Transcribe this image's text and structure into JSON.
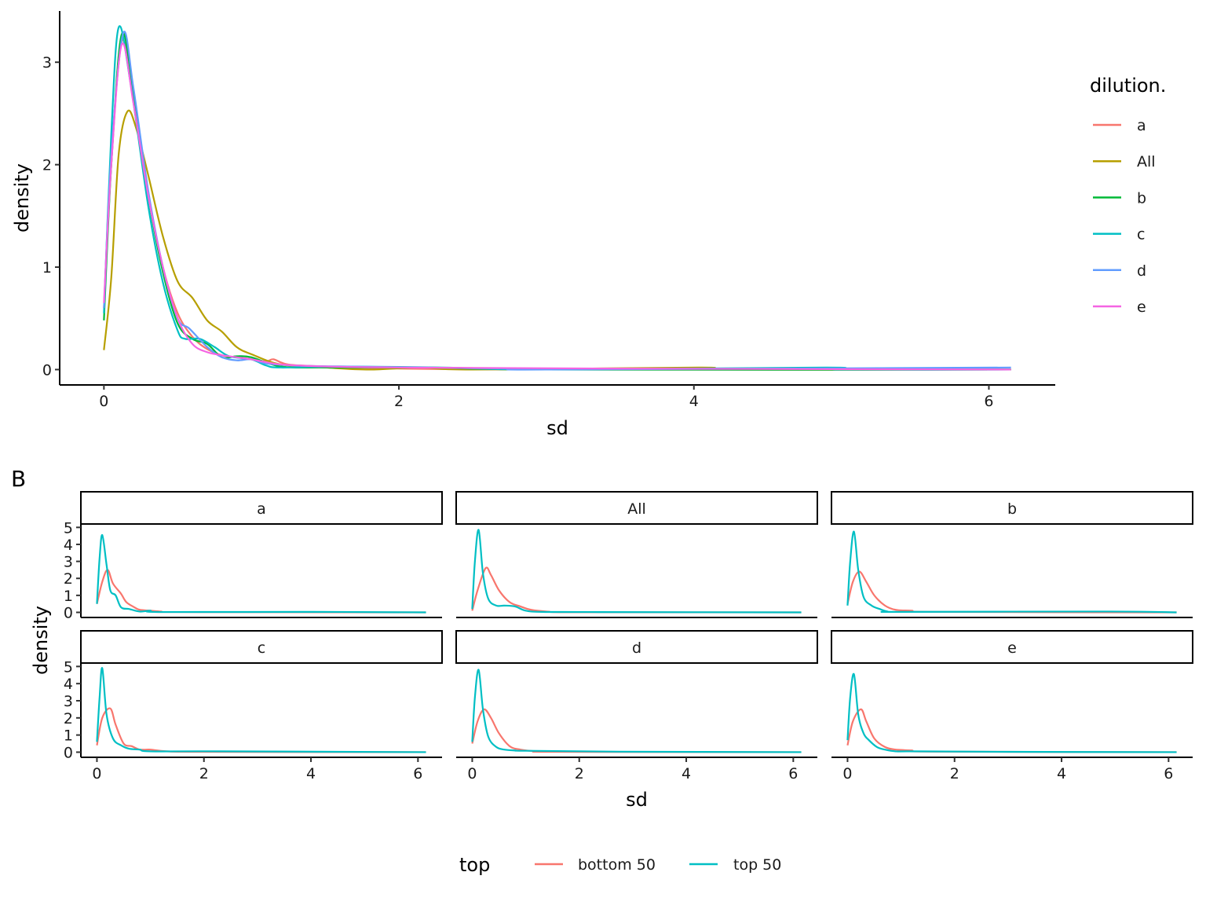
{
  "chart_data": [
    {
      "type": "line",
      "subtype": "density",
      "panel_tag": "",
      "xlabel": "sd",
      "ylabel": "density",
      "xlim": [
        -0.3,
        6.45
      ],
      "ylim": [
        -0.15,
        3.5
      ],
      "xticks": [
        0,
        2,
        4,
        6
      ],
      "yticks": [
        0,
        1,
        2,
        3
      ],
      "grid": false,
      "legend": {
        "title": "dilution.",
        "placement": "right"
      },
      "series": [
        {
          "name": "a",
          "color": "#F8766D",
          "points": [
            [
              0,
              0.6
            ],
            [
              0.05,
              2.0
            ],
            [
              0.12,
              3.2
            ],
            [
              0.2,
              2.65
            ],
            [
              0.3,
              1.7
            ],
            [
              0.4,
              1.0
            ],
            [
              0.5,
              0.55
            ],
            [
              0.6,
              0.32
            ],
            [
              0.7,
              0.2
            ],
            [
              0.8,
              0.14
            ],
            [
              0.9,
              0.12
            ],
            [
              1.0,
              0.1
            ],
            [
              1.1,
              0.08
            ],
            [
              1.15,
              0.1
            ],
            [
              1.25,
              0.05
            ],
            [
              1.5,
              0.03
            ],
            [
              2.0,
              0.01
            ],
            [
              3.0,
              0.0
            ],
            [
              6.15,
              0.0
            ]
          ]
        },
        {
          "name": "All",
          "color": "#B79F00",
          "points": [
            [
              0,
              0.19
            ],
            [
              0.05,
              0.9
            ],
            [
              0.1,
              2.1
            ],
            [
              0.16,
              2.52
            ],
            [
              0.22,
              2.35
            ],
            [
              0.3,
              1.9
            ],
            [
              0.4,
              1.3
            ],
            [
              0.5,
              0.86
            ],
            [
              0.6,
              0.7
            ],
            [
              0.7,
              0.48
            ],
            [
              0.8,
              0.37
            ],
            [
              0.9,
              0.22
            ],
            [
              1.0,
              0.15
            ],
            [
              1.2,
              0.05
            ],
            [
              1.5,
              0.02
            ],
            [
              1.8,
              0.0
            ],
            [
              2.15,
              0.02
            ],
            [
              2.5,
              0.0
            ],
            [
              4.05,
              0.02
            ],
            [
              4.2,
              0.0
            ],
            [
              6.15,
              0.0
            ]
          ]
        },
        {
          "name": "b",
          "color": "#00BA38",
          "points": [
            [
              0,
              0.48
            ],
            [
              0.05,
              2.0
            ],
            [
              0.12,
              3.27
            ],
            [
              0.2,
              2.7
            ],
            [
              0.3,
              1.7
            ],
            [
              0.4,
              0.95
            ],
            [
              0.5,
              0.45
            ],
            [
              0.6,
              0.3
            ],
            [
              0.7,
              0.25
            ],
            [
              0.8,
              0.12
            ],
            [
              0.9,
              0.13
            ],
            [
              1.0,
              0.12
            ],
            [
              1.2,
              0.03
            ],
            [
              1.5,
              0.02
            ],
            [
              2.2,
              0.02
            ],
            [
              3.0,
              0.0
            ],
            [
              6.15,
              0.0
            ]
          ]
        },
        {
          "name": "c",
          "color": "#00BFC4",
          "points": [
            [
              0,
              0.55
            ],
            [
              0.05,
              2.3
            ],
            [
              0.1,
              3.34
            ],
            [
              0.18,
              2.8
            ],
            [
              0.3,
              1.6
            ],
            [
              0.4,
              0.85
            ],
            [
              0.5,
              0.38
            ],
            [
              0.55,
              0.3
            ],
            [
              0.65,
              0.3
            ],
            [
              0.75,
              0.22
            ],
            [
              0.85,
              0.13
            ],
            [
              1.0,
              0.1
            ],
            [
              1.1,
              0.04
            ],
            [
              1.2,
              0.02
            ],
            [
              1.6,
              0.03
            ],
            [
              2.3,
              0.02
            ],
            [
              3.0,
              0.0
            ],
            [
              4.9,
              0.02
            ],
            [
              5.0,
              0.0
            ],
            [
              6.15,
              0.0
            ]
          ]
        },
        {
          "name": "d",
          "color": "#619CFF",
          "points": [
            [
              0,
              0.6
            ],
            [
              0.05,
              2.1
            ],
            [
              0.13,
              3.28
            ],
            [
              0.2,
              2.75
            ],
            [
              0.3,
              1.75
            ],
            [
              0.4,
              1.0
            ],
            [
              0.5,
              0.5
            ],
            [
              0.58,
              0.4
            ],
            [
              0.7,
              0.22
            ],
            [
              0.8,
              0.12
            ],
            [
              0.9,
              0.09
            ],
            [
              1.0,
              0.1
            ],
            [
              1.1,
              0.06
            ],
            [
              1.3,
              0.04
            ],
            [
              1.6,
              0.03
            ],
            [
              2.75,
              0.01
            ],
            [
              3.0,
              0.0
            ],
            [
              6.15,
              0.02
            ]
          ]
        },
        {
          "name": "e",
          "color": "#F564E3",
          "points": [
            [
              0,
              0.65
            ],
            [
              0.05,
              2.0
            ],
            [
              0.12,
              3.17
            ],
            [
              0.2,
              2.6
            ],
            [
              0.3,
              1.7
            ],
            [
              0.4,
              1.0
            ],
            [
              0.5,
              0.5
            ],
            [
              0.6,
              0.25
            ],
            [
              0.7,
              0.17
            ],
            [
              0.8,
              0.14
            ],
            [
              0.9,
              0.12
            ],
            [
              1.0,
              0.1
            ],
            [
              1.2,
              0.05
            ],
            [
              1.5,
              0.03
            ],
            [
              2.0,
              0.02
            ],
            [
              3.4,
              0.01
            ],
            [
              6.15,
              0.0
            ]
          ]
        }
      ]
    },
    {
      "type": "line",
      "subtype": "density-facets",
      "panel_tag": "B",
      "xlabel": "sd",
      "ylabel": "density",
      "xlim": [
        -0.3,
        6.45
      ],
      "ylim": [
        -0.3,
        5.2
      ],
      "xticks": [
        0,
        2,
        4,
        6
      ],
      "yticks": [
        0,
        1,
        2,
        3,
        4,
        5
      ],
      "grid": false,
      "legend": {
        "title": "top",
        "placement": "bottom",
        "entries": [
          {
            "name": "bottom 50",
            "color": "#F8766D"
          },
          {
            "name": "top 50",
            "color": "#00BFC4"
          }
        ]
      },
      "facets": [
        {
          "label": "a",
          "bottom": [
            [
              0,
              0.5
            ],
            [
              0.1,
              1.8
            ],
            [
              0.2,
              2.5
            ],
            [
              0.3,
              1.7
            ],
            [
              0.45,
              1.1
            ],
            [
              0.55,
              0.6
            ],
            [
              0.7,
              0.3
            ],
            [
              0.8,
              0.15
            ],
            [
              1.0,
              0.1
            ],
            [
              1.2,
              0.05
            ],
            [
              1.5,
              0.02
            ],
            [
              6.15,
              0
            ]
          ],
          "top": [
            [
              0,
              0.5
            ],
            [
              0.05,
              3.2
            ],
            [
              0.1,
              4.55
            ],
            [
              0.18,
              2.8
            ],
            [
              0.25,
              1.3
            ],
            [
              0.35,
              1.0
            ],
            [
              0.45,
              0.3
            ],
            [
              0.6,
              0.2
            ],
            [
              0.8,
              0.05
            ],
            [
              1.0,
              0.1
            ],
            [
              1.2,
              0.02
            ],
            [
              4.05,
              0.03
            ],
            [
              6.15,
              0
            ]
          ]
        },
        {
          "label": "All",
          "bottom": [
            [
              0,
              0.1
            ],
            [
              0.1,
              1.3
            ],
            [
              0.25,
              2.6
            ],
            [
              0.35,
              2.2
            ],
            [
              0.5,
              1.3
            ],
            [
              0.7,
              0.6
            ],
            [
              0.9,
              0.35
            ],
            [
              1.1,
              0.15
            ],
            [
              1.4,
              0.05
            ],
            [
              2.0,
              0.01
            ],
            [
              6.15,
              0
            ]
          ],
          "top": [
            [
              0,
              0.2
            ],
            [
              0.05,
              3.0
            ],
            [
              0.12,
              4.85
            ],
            [
              0.2,
              2.3
            ],
            [
              0.3,
              0.8
            ],
            [
              0.45,
              0.4
            ],
            [
              0.6,
              0.4
            ],
            [
              0.8,
              0.35
            ],
            [
              1.0,
              0.1
            ],
            [
              1.3,
              0.03
            ],
            [
              2.2,
              0.02
            ],
            [
              6.15,
              0
            ]
          ]
        },
        {
          "label": "b",
          "bottom": [
            [
              0,
              0.5
            ],
            [
              0.1,
              1.8
            ],
            [
              0.22,
              2.4
            ],
            [
              0.35,
              1.8
            ],
            [
              0.5,
              1.0
            ],
            [
              0.7,
              0.4
            ],
            [
              0.9,
              0.15
            ],
            [
              1.2,
              0.1
            ],
            [
              1.6,
              0.03
            ],
            [
              6.15,
              0
            ]
          ],
          "top": [
            [
              0,
              0.4
            ],
            [
              0.05,
              3.0
            ],
            [
              0.12,
              4.75
            ],
            [
              0.2,
              2.5
            ],
            [
              0.3,
              0.9
            ],
            [
              0.45,
              0.4
            ],
            [
              0.6,
              0.2
            ],
            [
              0.75,
              0.05
            ],
            [
              1.0,
              0.03
            ],
            [
              4.9,
              0.05
            ],
            [
              6.15,
              0
            ]
          ]
        },
        {
          "label": "c",
          "bottom": [
            [
              0,
              0.4
            ],
            [
              0.1,
              2.0
            ],
            [
              0.25,
              2.55
            ],
            [
              0.35,
              1.6
            ],
            [
              0.5,
              0.5
            ],
            [
              0.65,
              0.35
            ],
            [
              0.8,
              0.15
            ],
            [
              1.0,
              0.15
            ],
            [
              1.3,
              0.05
            ],
            [
              2.0,
              0.02
            ],
            [
              6.15,
              0
            ]
          ],
          "top": [
            [
              0,
              0.6
            ],
            [
              0.05,
              3.2
            ],
            [
              0.1,
              4.9
            ],
            [
              0.18,
              2.2
            ],
            [
              0.3,
              0.8
            ],
            [
              0.45,
              0.4
            ],
            [
              0.6,
              0.2
            ],
            [
              0.8,
              0.15
            ],
            [
              1.0,
              0.05
            ],
            [
              2.3,
              0.05
            ],
            [
              6.15,
              0
            ]
          ]
        },
        {
          "label": "d",
          "bottom": [
            [
              0,
              0.5
            ],
            [
              0.1,
              1.8
            ],
            [
              0.22,
              2.5
            ],
            [
              0.35,
              2.0
            ],
            [
              0.5,
              1.1
            ],
            [
              0.7,
              0.35
            ],
            [
              0.9,
              0.15
            ],
            [
              1.2,
              0.05
            ],
            [
              1.6,
              0.02
            ],
            [
              6.15,
              0
            ]
          ],
          "top": [
            [
              0,
              0.6
            ],
            [
              0.05,
              3.2
            ],
            [
              0.12,
              4.8
            ],
            [
              0.2,
              2.5
            ],
            [
              0.3,
              0.9
            ],
            [
              0.45,
              0.3
            ],
            [
              0.6,
              0.15
            ],
            [
              0.8,
              0.1
            ],
            [
              1.0,
              0.08
            ],
            [
              2.75,
              0.03
            ],
            [
              6.15,
              0
            ]
          ]
        },
        {
          "label": "e",
          "bottom": [
            [
              0,
              0.4
            ],
            [
              0.1,
              1.8
            ],
            [
              0.25,
              2.5
            ],
            [
              0.35,
              1.8
            ],
            [
              0.5,
              0.8
            ],
            [
              0.7,
              0.3
            ],
            [
              0.9,
              0.15
            ],
            [
              1.2,
              0.1
            ],
            [
              1.6,
              0.03
            ],
            [
              6.15,
              0
            ]
          ],
          "top": [
            [
              0,
              0.7
            ],
            [
              0.05,
              3.2
            ],
            [
              0.12,
              4.55
            ],
            [
              0.2,
              2.2
            ],
            [
              0.3,
              1.1
            ],
            [
              0.4,
              0.7
            ],
            [
              0.55,
              0.3
            ],
            [
              0.7,
              0.15
            ],
            [
              0.9,
              0.05
            ],
            [
              1.2,
              0.05
            ],
            [
              3.0,
              0.02
            ],
            [
              6.15,
              0
            ]
          ]
        }
      ]
    }
  ]
}
